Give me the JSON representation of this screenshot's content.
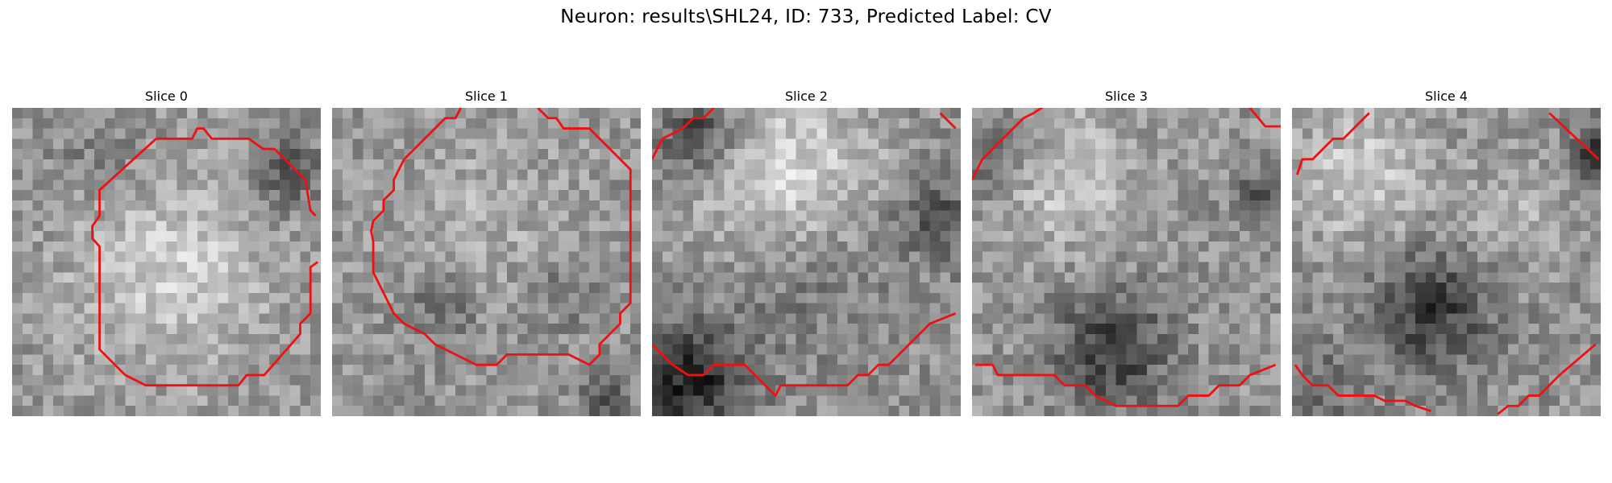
{
  "figure": {
    "title": "Neuron: results\\SHL24, ID: 733, Predicted Label: CV"
  },
  "panels": [
    {
      "title": "Slice 0"
    },
    {
      "title": "Slice 1"
    },
    {
      "title": "Slice 2"
    },
    {
      "title": "Slice 3"
    },
    {
      "title": "Slice 4"
    }
  ],
  "colors": {
    "contour": "#ee1111",
    "background": "#ffffff"
  },
  "image_style": "grayscale pixelated microscopy slice, 30x30 grid"
}
